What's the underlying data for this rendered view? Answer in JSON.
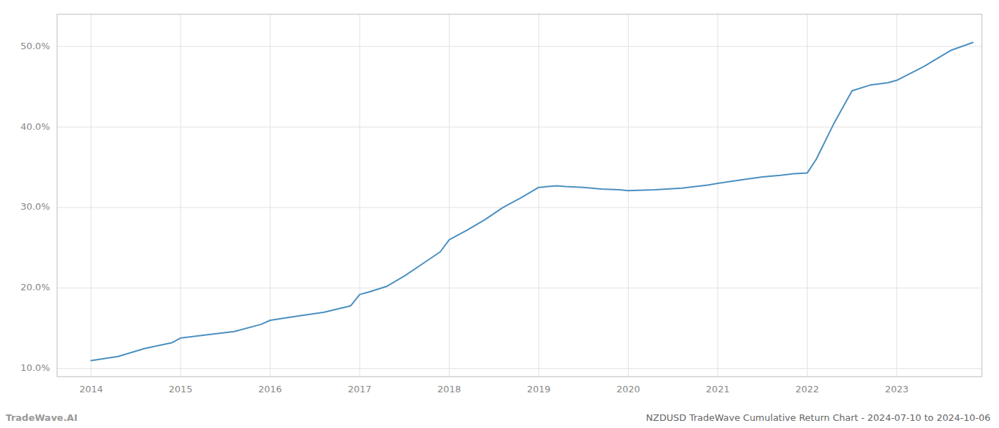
{
  "chart_data": {
    "type": "line",
    "title": "NZDUSD TradeWave Cumulative Return Chart - 2024-07-10 to 2024-10-06",
    "annotations": [
      "TradeWave.AI"
    ],
    "color": "#4a8fc0",
    "grid": true,
    "x": [
      2014.0,
      2014.3,
      2014.6,
      2014.9,
      2015.0,
      2015.3,
      2015.6,
      2015.9,
      2016.0,
      2016.3,
      2016.6,
      2016.9,
      2017.0,
      2017.1,
      2017.3,
      2017.5,
      2017.7,
      2017.9,
      2018.0,
      2018.2,
      2018.4,
      2018.6,
      2018.8,
      2019.0,
      2019.1,
      2019.2,
      2019.3,
      2019.5,
      2019.7,
      2019.9,
      2020.0,
      2020.3,
      2020.6,
      2020.9,
      2021.0,
      2021.3,
      2021.5,
      2021.7,
      2021.85,
      2022.0,
      2022.1,
      2022.3,
      2022.5,
      2022.7,
      2022.9,
      2023.0,
      2023.3,
      2023.6,
      2023.85
    ],
    "values": [
      11.0,
      11.5,
      12.5,
      13.2,
      13.8,
      14.2,
      14.6,
      15.5,
      16.0,
      16.5,
      17.0,
      17.8,
      19.2,
      19.5,
      20.2,
      21.5,
      23.0,
      24.5,
      26.0,
      27.2,
      28.5,
      30.0,
      31.2,
      32.5,
      32.6,
      32.7,
      32.6,
      32.5,
      32.3,
      32.2,
      32.1,
      32.2,
      32.4,
      32.8,
      33.0,
      33.5,
      33.8,
      34.0,
      34.2,
      34.3,
      36.0,
      40.5,
      44.5,
      45.2,
      45.5,
      45.8,
      47.5,
      49.5,
      50.5
    ],
    "xlim": [
      2013.62,
      2023.95
    ],
    "ylim": [
      9.0,
      54.0
    ],
    "xticks": [
      2014,
      2015,
      2016,
      2017,
      2018,
      2019,
      2020,
      2021,
      2022,
      2023
    ],
    "yticks": [
      {
        "value": 10.0,
        "label": "10.0%"
      },
      {
        "value": 20.0,
        "label": "20.0%"
      },
      {
        "value": 30.0,
        "label": "30.0%"
      },
      {
        "value": 40.0,
        "label": "40.0%"
      },
      {
        "value": 50.0,
        "label": "50.0%"
      }
    ]
  }
}
